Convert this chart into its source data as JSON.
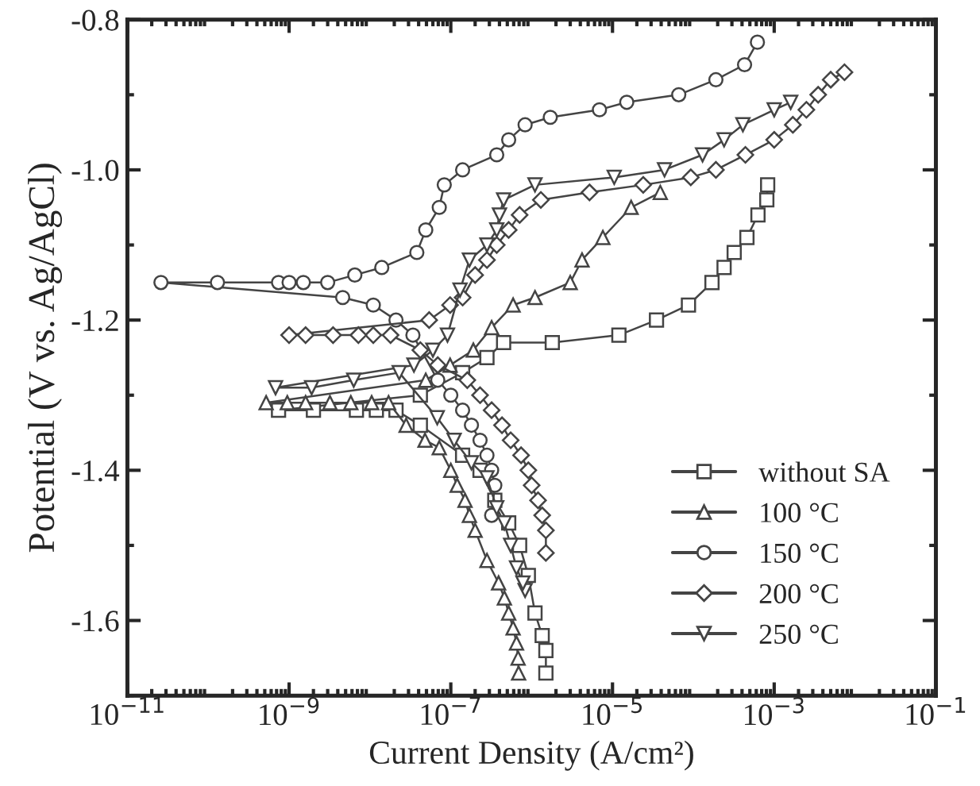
{
  "chart_data": {
    "type": "line",
    "xlabel": "Current Density (A/cm²)",
    "ylabel": "Potential (V vs. Ag/AgCl)",
    "log": "x",
    "xlim": [
      1e-11,
      0.1
    ],
    "ylim": [
      -1.7,
      -0.8
    ],
    "xticks": [
      {
        "value": 1e-11,
        "label": "10$^{−11}$"
      },
      {
        "value": 1e-09,
        "label": "10$^{−9}$"
      },
      {
        "value": 1e-07,
        "label": "10$^{−7}$"
      },
      {
        "value": 1e-05,
        "label": "10$^{−5}$"
      },
      {
        "value": 0.001,
        "label": "10$^{−3}$"
      },
      {
        "value": 0.1,
        "label": "10$^{−1}$"
      }
    ],
    "yticks": [
      {
        "value": -1.6,
        "label": "-1.6"
      },
      {
        "value": -1.4,
        "label": "-1.4"
      },
      {
        "value": -1.2,
        "label": "-1.2"
      },
      {
        "value": -1.0,
        "label": "-1.0"
      },
      {
        "value": -0.8,
        "label": "-0.8"
      }
    ],
    "grid": false,
    "legend": "bottom right",
    "series": [
      {
        "name": "without SA",
        "color": "#444444",
        "marker": "square",
        "x": [
          1.5e-06,
          1.5e-06,
          1.35e-06,
          1.1e-06,
          9.1e-07,
          7.1e-07,
          5.2e-07,
          3.5e-07,
          2.3e-07,
          1.4e-07,
          4.2e-08,
          2.1e-08,
          1.2e-08,
          6.8e-09,
          2e-09,
          7.4e-10,
          4.2e-08,
          1.4e-07,
          2.8e-07,
          4.5e-07,
          1.8e-06,
          1.2e-05,
          3.5e-05,
          8.7e-05,
          0.00017,
          0.00024,
          0.00032,
          0.00046,
          0.00063,
          0.00081,
          0.00083
        ],
        "values": [
          -1.67,
          -1.64,
          -1.62,
          -1.59,
          -1.54,
          -1.5,
          -1.47,
          -1.44,
          -1.4,
          -1.38,
          -1.34,
          -1.32,
          -1.32,
          -1.32,
          -1.32,
          -1.32,
          -1.3,
          -1.27,
          -1.25,
          -1.23,
          -1.23,
          -1.22,
          -1.2,
          -1.18,
          -1.15,
          -1.13,
          -1.11,
          -1.09,
          -1.06,
          -1.04,
          -1.02
        ]
      },
      {
        "name": "100 °C",
        "color": "#444444",
        "marker": "triangle",
        "x": [
          6.9e-07,
          6.8e-07,
          6.5e-07,
          5.9e-07,
          5.2e-07,
          4.6e-07,
          3.9e-07,
          2.8e-07,
          2e-07,
          1.7e-07,
          1.5e-07,
          1.2e-07,
          1e-07,
          7.2e-08,
          4.8e-08,
          2.8e-08,
          1.7e-08,
          1.05e-08,
          5.8e-09,
          3.2e-09,
          1.6e-09,
          9.5e-10,
          5.2e-10,
          4.9e-08,
          9.8e-08,
          1.9e-07,
          3.2e-07,
          5.9e-07,
          1.1e-06,
          3e-06,
          4.2e-06,
          7.6e-06,
          1.7e-05,
          3.9e-05
        ],
        "values": [
          -1.67,
          -1.65,
          -1.63,
          -1.61,
          -1.59,
          -1.57,
          -1.55,
          -1.52,
          -1.48,
          -1.46,
          -1.44,
          -1.42,
          -1.4,
          -1.37,
          -1.36,
          -1.34,
          -1.31,
          -1.31,
          -1.31,
          -1.31,
          -1.31,
          -1.31,
          -1.31,
          -1.28,
          -1.26,
          -1.24,
          -1.21,
          -1.18,
          -1.17,
          -1.15,
          -1.12,
          -1.09,
          -1.05,
          -1.03
        ]
      },
      {
        "name": "150 °C",
        "color": "#444444",
        "marker": "circle",
        "x": [
          3.2e-07,
          3.5e-07,
          3.2e-07,
          2.8e-07,
          2.3e-07,
          1.8e-07,
          1.4e-07,
          1e-07,
          6.9e-08,
          3.4e-08,
          2.1e-08,
          1.1e-08,
          4.6e-09,
          2.6e-11,
          1.3e-10,
          7.4e-10,
          1e-09,
          1.5e-09,
          3e-09,
          6.5e-09,
          1.4e-08,
          3.8e-08,
          4.9e-08,
          7.2e-08,
          8.3e-08,
          1.4e-07,
          3.7e-07,
          5.2e-07,
          8.3e-07,
          1.7e-06,
          6.9e-06,
          1.5e-05,
          6.6e-05,
          0.00019,
          0.00043,
          0.00062
        ],
        "values": [
          -1.46,
          -1.42,
          -1.4,
          -1.38,
          -1.36,
          -1.34,
          -1.32,
          -1.3,
          -1.28,
          -1.22,
          -1.2,
          -1.18,
          -1.17,
          -1.15,
          -1.15,
          -1.15,
          -1.15,
          -1.15,
          -1.15,
          -1.14,
          -1.13,
          -1.11,
          -1.08,
          -1.05,
          -1.02,
          -1.0,
          -0.98,
          -0.96,
          -0.94,
          -0.93,
          -0.92,
          -0.91,
          -0.9,
          -0.88,
          -0.86,
          -0.83
        ]
      },
      {
        "name": "200 °C",
        "color": "#444444",
        "marker": "diamond",
        "x": [
          1.5e-06,
          1.5e-06,
          1.35e-06,
          1.2e-06,
          1e-06,
          9.1e-07,
          7.4e-07,
          5.5e-07,
          4.3e-07,
          3.2e-07,
          2.3e-07,
          1.6e-07,
          6.9e-08,
          4.2e-08,
          1.8e-08,
          1.1e-08,
          7.2e-09,
          3.5e-09,
          1.6e-09,
          1e-09,
          5.4e-08,
          9.8e-08,
          1.4e-07,
          2e-07,
          2.8e-07,
          3.7e-07,
          5.2e-07,
          7.1e-07,
          1.3e-06,
          5.2e-06,
          2.4e-05,
          9.3e-05,
          0.00019,
          0.00044,
          0.001,
          0.0017,
          0.0025,
          0.0035,
          0.005,
          0.0074
        ],
        "values": [
          -1.51,
          -1.48,
          -1.46,
          -1.44,
          -1.42,
          -1.4,
          -1.38,
          -1.36,
          -1.34,
          -1.32,
          -1.3,
          -1.28,
          -1.26,
          -1.24,
          -1.22,
          -1.22,
          -1.22,
          -1.22,
          -1.22,
          -1.22,
          -1.2,
          -1.18,
          -1.17,
          -1.14,
          -1.12,
          -1.1,
          -1.08,
          -1.06,
          -1.04,
          -1.03,
          -1.02,
          -1.01,
          -1.0,
          -0.98,
          -0.96,
          -0.94,
          -0.92,
          -0.9,
          -0.88,
          -0.87
        ]
      },
      {
        "name": "250 °C",
        "color": "#444444",
        "marker": "triangle-down",
        "x": [
          8.3e-07,
          7.8e-07,
          6.5e-07,
          5.5e-07,
          4.6e-07,
          3.7e-07,
          2.8e-07,
          1.8e-07,
          1.1e-07,
          6.8e-08,
          2.3e-08,
          6.3e-09,
          1.9e-09,
          6.8e-10,
          3.5e-08,
          6e-08,
          9.1e-08,
          1.3e-07,
          1.7e-07,
          2.8e-07,
          3.7e-07,
          4e-07,
          4.5e-07,
          1.1e-06,
          1.05e-05,
          4.4e-05,
          0.00013,
          0.00024,
          0.00041,
          0.001,
          0.0016
        ],
        "values": [
          -1.56,
          -1.55,
          -1.53,
          -1.5,
          -1.47,
          -1.45,
          -1.41,
          -1.39,
          -1.36,
          -1.33,
          -1.27,
          -1.28,
          -1.29,
          -1.29,
          -1.26,
          -1.24,
          -1.22,
          -1.16,
          -1.12,
          -1.1,
          -1.08,
          -1.06,
          -1.04,
          -1.02,
          -1.01,
          -1.0,
          -0.98,
          -0.96,
          -0.94,
          -0.92,
          -0.91
        ]
      }
    ]
  }
}
